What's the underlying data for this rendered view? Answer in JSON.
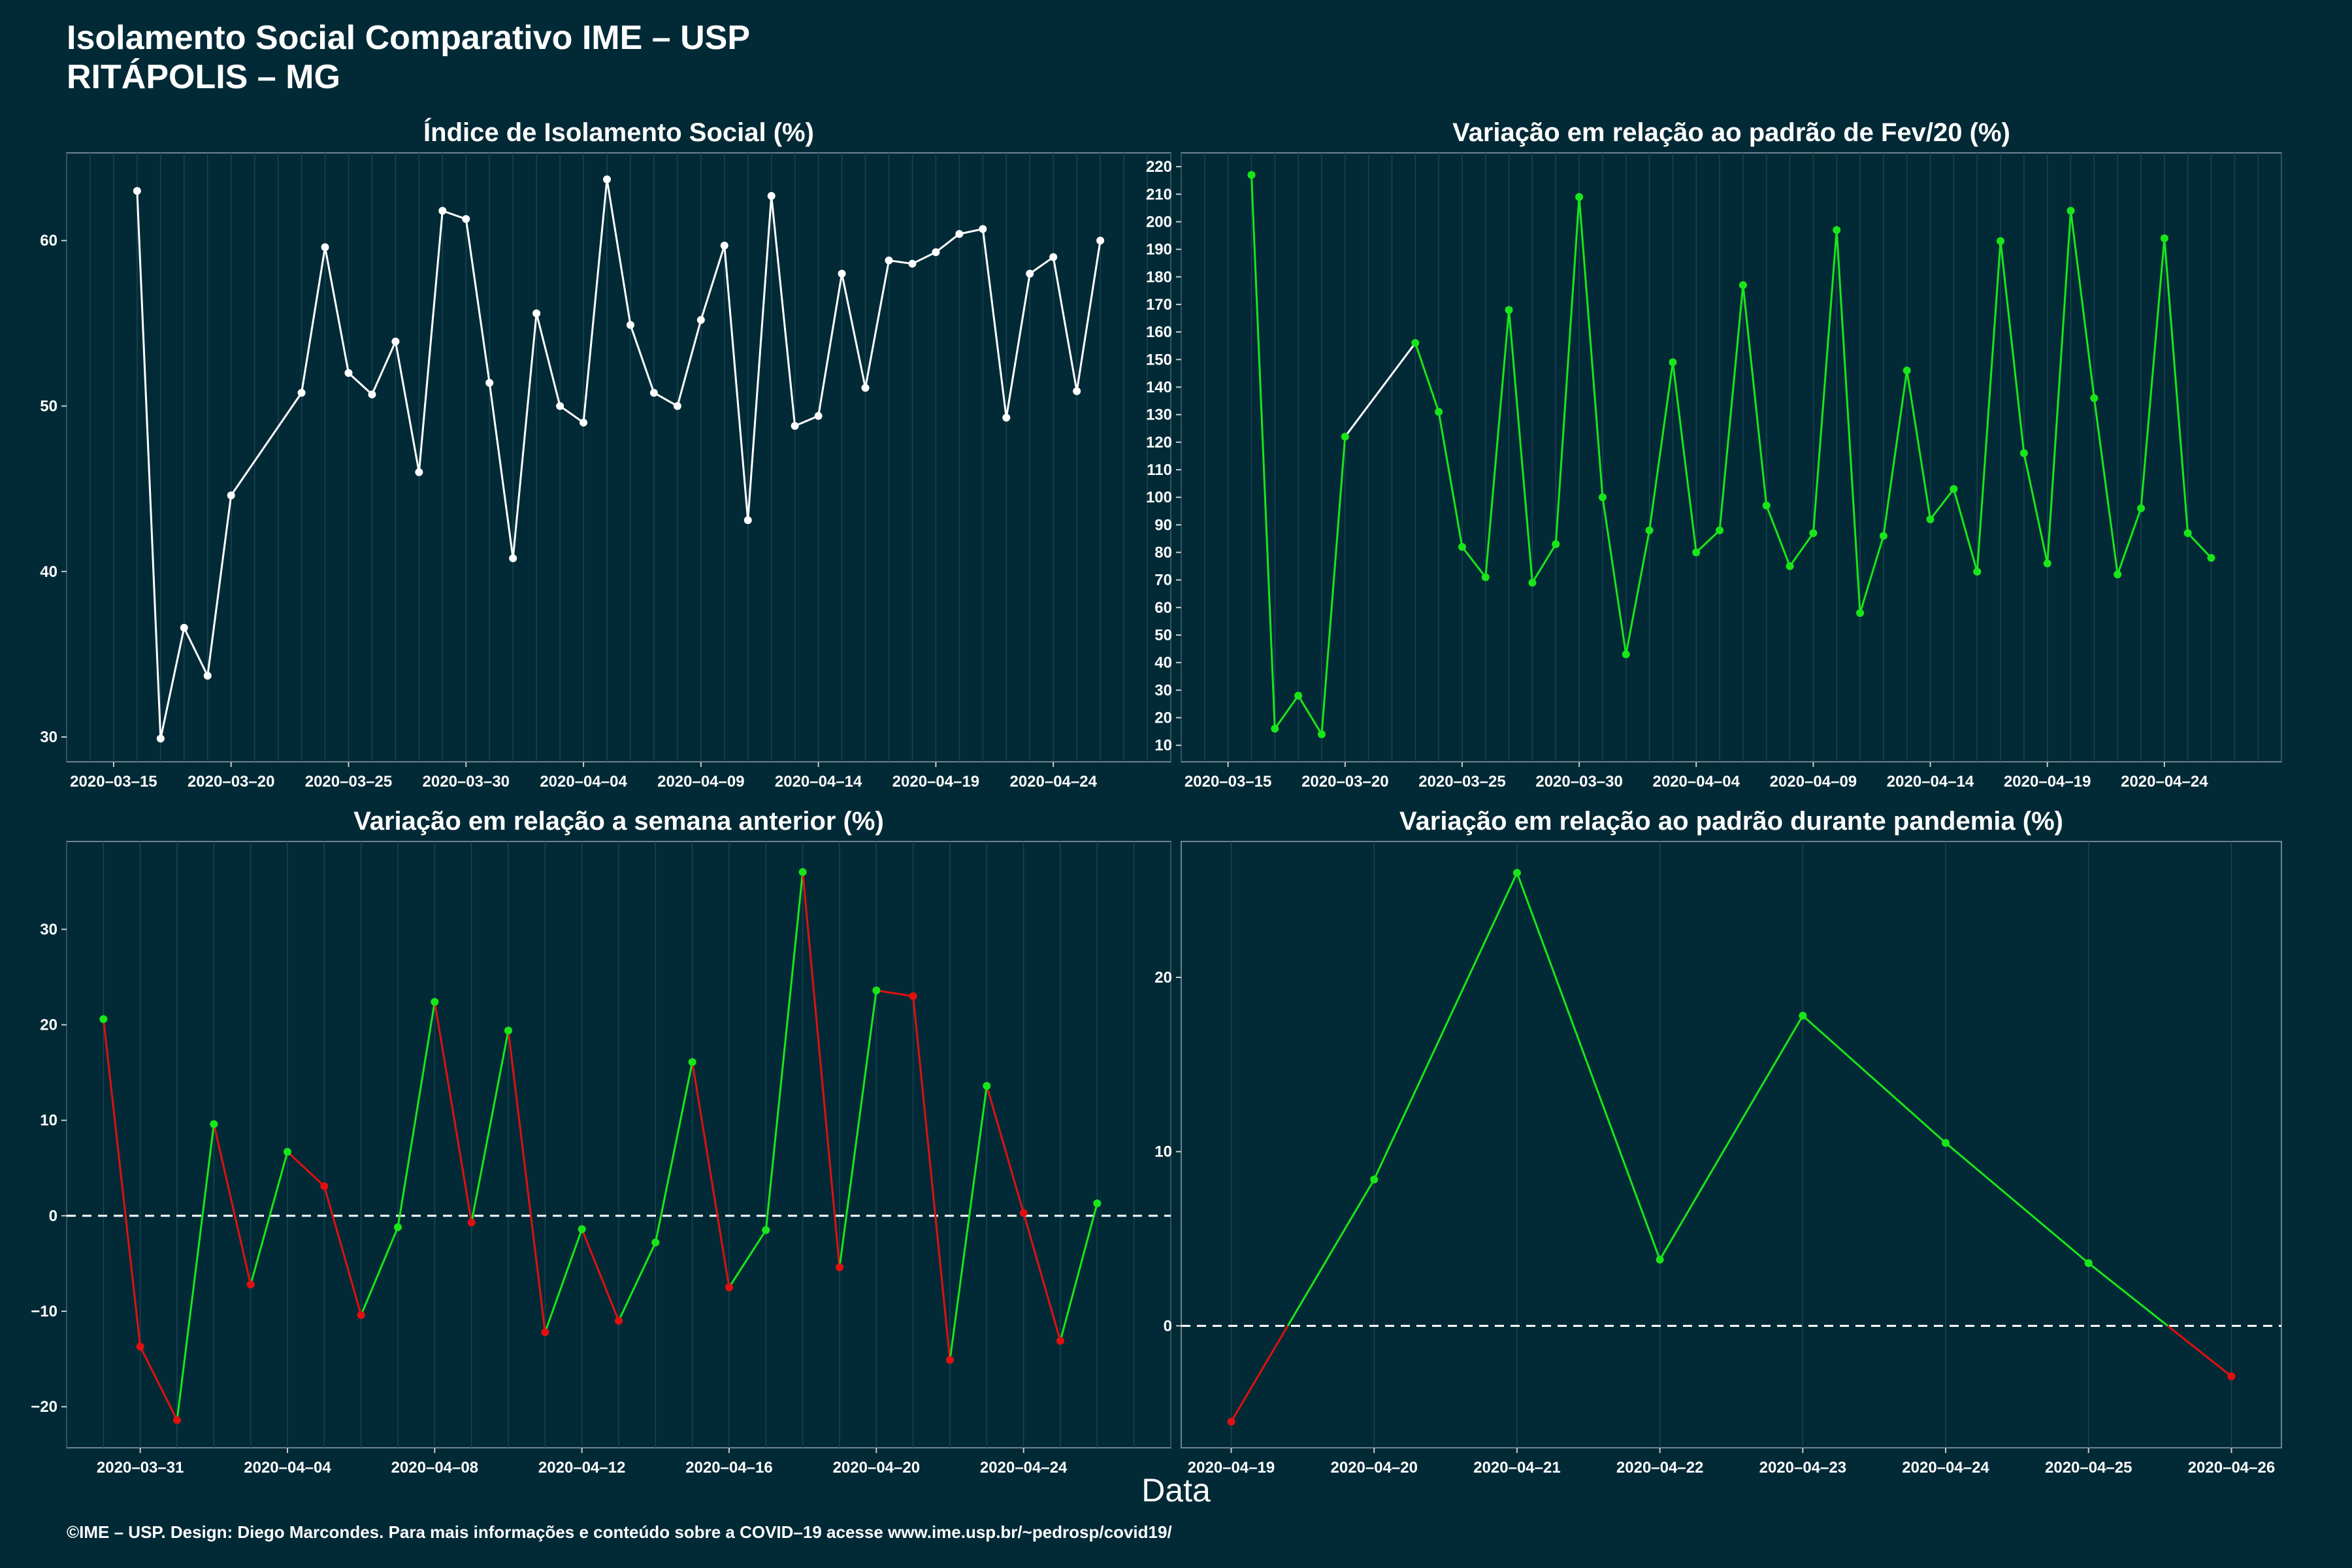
{
  "title_line1": "Isolamento Social Comparativo IME – USP",
  "title_line2": "RITÁPOLIS – MG",
  "xlabel": "Data",
  "footer": "©IME – USP. Design: Diego Marcondes. Para mais informações e conteúdo sobre a COVID–19 acesse www.ime.usp.br/~pedrosp/covid19/",
  "colors": {
    "background": "#022a36",
    "up": "#19e619",
    "down": "#e01010",
    "neutral": "#ffffff"
  },
  "chart_data": [
    {
      "type": "line",
      "title": "Índice de Isolamento Social (%)",
      "x_ticks": [
        "2020–03–15",
        "2020–03–20",
        "2020–03–25",
        "2020–03–30",
        "2020–04–04",
        "2020–04–09",
        "2020–04–14",
        "2020–04–19",
        "2020–04–24"
      ],
      "y_ticks": [
        30,
        40,
        50,
        60
      ],
      "xlim": [
        "2020-03-13",
        "2020-04-29"
      ],
      "ylim": [
        28.5,
        65.3
      ],
      "color_mode": "neutral",
      "points": [
        {
          "x": "2020-03-16",
          "y": 63.0
        },
        {
          "x": "2020-03-17",
          "y": 29.9
        },
        {
          "x": "2020-03-18",
          "y": 36.6
        },
        {
          "x": "2020-03-19",
          "y": 33.7
        },
        {
          "x": "2020-03-20",
          "y": 44.6
        },
        {
          "x": "2020-03-23",
          "y": 50.8
        },
        {
          "x": "2020-03-24",
          "y": 59.6
        },
        {
          "x": "2020-03-25",
          "y": 52.0
        },
        {
          "x": "2020-03-26",
          "y": 50.7
        },
        {
          "x": "2020-03-27",
          "y": 53.9
        },
        {
          "x": "2020-03-28",
          "y": 46.0
        },
        {
          "x": "2020-03-29",
          "y": 61.8
        },
        {
          "x": "2020-03-30",
          "y": 61.3
        },
        {
          "x": "2020-03-31",
          "y": 51.4
        },
        {
          "x": "2020-04-01",
          "y": 40.8
        },
        {
          "x": "2020-04-02",
          "y": 55.6
        },
        {
          "x": "2020-04-03",
          "y": 50.0
        },
        {
          "x": "2020-04-04",
          "y": 49.0
        },
        {
          "x": "2020-04-05",
          "y": 63.7
        },
        {
          "x": "2020-04-06",
          "y": 54.9
        },
        {
          "x": "2020-04-07",
          "y": 50.8
        },
        {
          "x": "2020-04-08",
          "y": 50.0
        },
        {
          "x": "2020-04-09",
          "y": 55.2
        },
        {
          "x": "2020-04-10",
          "y": 59.7
        },
        {
          "x": "2020-04-11",
          "y": 43.1
        },
        {
          "x": "2020-04-12",
          "y": 62.7
        },
        {
          "x": "2020-04-13",
          "y": 48.8
        },
        {
          "x": "2020-04-14",
          "y": 49.4
        },
        {
          "x": "2020-04-15",
          "y": 58.0
        },
        {
          "x": "2020-04-16",
          "y": 51.1
        },
        {
          "x": "2020-04-17",
          "y": 58.8
        },
        {
          "x": "2020-04-18",
          "y": 58.6
        },
        {
          "x": "2020-04-19",
          "y": 59.3
        },
        {
          "x": "2020-04-20",
          "y": 60.4
        },
        {
          "x": "2020-04-21",
          "y": 60.7
        },
        {
          "x": "2020-04-22",
          "y": 49.3
        },
        {
          "x": "2020-04-23",
          "y": 58.0
        },
        {
          "x": "2020-04-24",
          "y": 59.0
        },
        {
          "x": "2020-04-25",
          "y": 50.9
        },
        {
          "x": "2020-04-26",
          "y": 60.0
        }
      ]
    },
    {
      "type": "line",
      "title": "Variação em relação ao padrão de Fev/20 (%)",
      "x_ticks": [
        "2020–03–15",
        "2020–03–20",
        "2020–03–25",
        "2020–03–30",
        "2020–04–04",
        "2020–04–09",
        "2020–04–14",
        "2020–04–19",
        "2020–04–24"
      ],
      "y_ticks": [
        10,
        20,
        30,
        40,
        50,
        60,
        70,
        80,
        90,
        100,
        110,
        120,
        130,
        140,
        150,
        160,
        170,
        180,
        190,
        200,
        210,
        220
      ],
      "xlim": [
        "2020-03-13",
        "2020-04-29"
      ],
      "ylim": [
        4,
        225
      ],
      "color_mode": "green_gap_white",
      "points": [
        {
          "x": "2020-03-16",
          "y": 217
        },
        {
          "x": "2020-03-17",
          "y": 16
        },
        {
          "x": "2020-03-18",
          "y": 28
        },
        {
          "x": "2020-03-19",
          "y": 14
        },
        {
          "x": "2020-03-20",
          "y": 122
        },
        {
          "x": "2020-03-23",
          "y": 156
        },
        {
          "x": "2020-03-24",
          "y": 131
        },
        {
          "x": "2020-03-25",
          "y": 82
        },
        {
          "x": "2020-03-26",
          "y": 71
        },
        {
          "x": "2020-03-27",
          "y": 168
        },
        {
          "x": "2020-03-28",
          "y": 69
        },
        {
          "x": "2020-03-29",
          "y": 83
        },
        {
          "x": "2020-03-30",
          "y": 209
        },
        {
          "x": "2020-03-31",
          "y": 100
        },
        {
          "x": "2020-04-01",
          "y": 43
        },
        {
          "x": "2020-04-02",
          "y": 88
        },
        {
          "x": "2020-04-03",
          "y": 149
        },
        {
          "x": "2020-04-04",
          "y": 80
        },
        {
          "x": "2020-04-05",
          "y": 88
        },
        {
          "x": "2020-04-06",
          "y": 177
        },
        {
          "x": "2020-04-07",
          "y": 97
        },
        {
          "x": "2020-04-08",
          "y": 75
        },
        {
          "x": "2020-04-09",
          "y": 87
        },
        {
          "x": "2020-04-10",
          "y": 197
        },
        {
          "x": "2020-04-11",
          "y": 58
        },
        {
          "x": "2020-04-12",
          "y": 86
        },
        {
          "x": "2020-04-13",
          "y": 146
        },
        {
          "x": "2020-04-14",
          "y": 92
        },
        {
          "x": "2020-04-15",
          "y": 103
        },
        {
          "x": "2020-04-16",
          "y": 73
        },
        {
          "x": "2020-04-17",
          "y": 193
        },
        {
          "x": "2020-04-18",
          "y": 116
        },
        {
          "x": "2020-04-19",
          "y": 76
        },
        {
          "x": "2020-04-20",
          "y": 204
        },
        {
          "x": "2020-04-21",
          "y": 136
        },
        {
          "x": "2020-04-22",
          "y": 72
        },
        {
          "x": "2020-04-23",
          "y": 96
        },
        {
          "x": "2020-04-24",
          "y": 194
        },
        {
          "x": "2020-04-25",
          "y": 87
        },
        {
          "x": "2020-04-26",
          "y": 78
        }
      ]
    },
    {
      "type": "line",
      "title": "Variação em relação a semana anterior (%)",
      "x_ticks": [
        "2020–03–31",
        "2020–04–04",
        "2020–04–08",
        "2020–04–12",
        "2020–04–16",
        "2020–04–20",
        "2020–04–24"
      ],
      "y_ticks": [
        -20,
        -10,
        0,
        10,
        20,
        30
      ],
      "xlim": [
        "2020-03-29",
        "2020-04-28"
      ],
      "ylim": [
        -24.3,
        39.2
      ],
      "color_mode": "slope",
      "zero_line": true,
      "points": [
        {
          "x": "2020-03-30",
          "y": 20.6
        },
        {
          "x": "2020-03-31",
          "y": -13.7
        },
        {
          "x": "2020-04-01",
          "y": -21.4
        },
        {
          "x": "2020-04-02",
          "y": 9.6
        },
        {
          "x": "2020-04-03",
          "y": -7.2
        },
        {
          "x": "2020-04-04",
          "y": 6.7
        },
        {
          "x": "2020-04-05",
          "y": 3.1
        },
        {
          "x": "2020-04-06",
          "y": -10.4
        },
        {
          "x": "2020-04-07",
          "y": -1.2
        },
        {
          "x": "2020-04-08",
          "y": 22.4
        },
        {
          "x": "2020-04-09",
          "y": -0.7
        },
        {
          "x": "2020-04-10",
          "y": 19.4
        },
        {
          "x": "2020-04-11",
          "y": -12.2
        },
        {
          "x": "2020-04-12",
          "y": -1.4
        },
        {
          "x": "2020-04-13",
          "y": -11.0
        },
        {
          "x": "2020-04-14",
          "y": -2.8
        },
        {
          "x": "2020-04-15",
          "y": 16.1
        },
        {
          "x": "2020-04-16",
          "y": -7.5
        },
        {
          "x": "2020-04-17",
          "y": -1.5
        },
        {
          "x": "2020-04-18",
          "y": 36.0
        },
        {
          "x": "2020-04-19",
          "y": -5.4
        },
        {
          "x": "2020-04-20",
          "y": 23.6
        },
        {
          "x": "2020-04-21",
          "y": 23.0
        },
        {
          "x": "2020-04-22",
          "y": -15.1
        },
        {
          "x": "2020-04-23",
          "y": 13.6
        },
        {
          "x": "2020-04-24",
          "y": 0.3
        },
        {
          "x": "2020-04-25",
          "y": -13.1
        },
        {
          "x": "2020-04-26",
          "y": 1.3
        }
      ]
    },
    {
      "type": "line",
      "title": "Variação em relação ao padrão durante pandemia (%)",
      "x_ticks": [
        "2020–04–19",
        "2020–04–20",
        "2020–04–21",
        "2020–04–22",
        "2020–04–23",
        "2020–04–24",
        "2020–04–25",
        "2020–04–26"
      ],
      "y_ticks": [
        0,
        10,
        20
      ],
      "xlim": [
        "2020-04-18.65",
        "2020-04-26.35"
      ],
      "ylim": [
        -7.0,
        27.8
      ],
      "color_mode": "sign",
      "zero_line": true,
      "points": [
        {
          "x": "2020-04-19",
          "y": -5.5
        },
        {
          "x": "2020-04-20",
          "y": 8.4
        },
        {
          "x": "2020-04-21",
          "y": 26.0
        },
        {
          "x": "2020-04-22",
          "y": 3.8
        },
        {
          "x": "2020-04-23",
          "y": 17.8
        },
        {
          "x": "2020-04-24",
          "y": 10.5
        },
        {
          "x": "2020-04-25",
          "y": 3.6
        },
        {
          "x": "2020-04-26",
          "y": -2.9
        }
      ]
    }
  ]
}
